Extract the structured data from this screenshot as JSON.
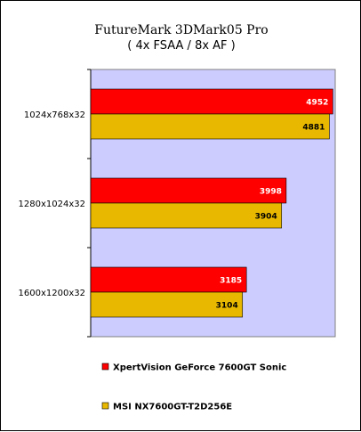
{
  "chart_data": {
    "type": "bar",
    "orientation": "horizontal",
    "title": "FutureMark 3DMark05 Pro",
    "subtitle": "( 4x FSAA / 8x AF )",
    "categories": [
      "1024x768x32",
      "1280x1024x32",
      "1600x1200x32"
    ],
    "series": [
      {
        "name": "XpertVision GeForce 7600GT Sonic",
        "values": [
          4952,
          3998,
          3185
        ],
        "color": "#ff0000",
        "label_color": "#ffffff"
      },
      {
        "name": "MSI NX7600GT-T2D256E",
        "values": [
          4881,
          3904,
          3104
        ],
        "color": "#e8b800",
        "label_color": "#000000"
      }
    ],
    "xlim": [
      0,
      5000
    ],
    "grid": false,
    "plot_background": "#ccccff",
    "legend_position": "bottom"
  }
}
